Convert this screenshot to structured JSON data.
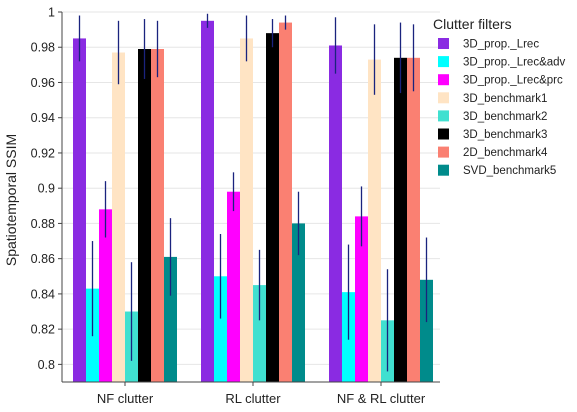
{
  "chart_data": {
    "type": "bar",
    "title": "",
    "xlabel": "",
    "ylabel": "Spatiotemporal SSIM",
    "ylim": [
      0.79,
      1.0
    ],
    "yticks": [
      0.8,
      0.82,
      0.84,
      0.86,
      0.88,
      0.9,
      0.92,
      0.94,
      0.96,
      0.98,
      1
    ],
    "ytick_labels": [
      "0.8",
      "0.82",
      "0.84",
      "0.86",
      "0.88",
      "0.9",
      "0.92",
      "0.94",
      "0.96",
      "0.98",
      "1"
    ],
    "grid": "horizontal",
    "legend_placement": "right",
    "legend_title": "Clutter filters",
    "categories": [
      "NF clutter",
      "RL clutter",
      "NF & RL clutter"
    ],
    "error_bar_color": "#1a237e",
    "series": [
      {
        "name": "3D_prop._Lrec",
        "color": "#8a2be2",
        "values": [
          0.985,
          0.995,
          0.981
        ],
        "errors": [
          0.013,
          0.004,
          0.016
        ]
      },
      {
        "name": "3D_prop._Lrec&adv",
        "color": "#00ffff",
        "values": [
          0.843,
          0.85,
          0.841
        ],
        "errors": [
          0.027,
          0.024,
          0.027
        ]
      },
      {
        "name": "3D_prop._Lrec&prc",
        "color": "#ff00ff",
        "values": [
          0.888,
          0.898,
          0.884
        ],
        "errors": [
          0.016,
          0.011,
          0.017
        ]
      },
      {
        "name": "3D_benchmark1",
        "color": "#ffe4c4",
        "values": [
          0.977,
          0.985,
          0.973
        ],
        "errors": [
          0.018,
          0.013,
          0.02
        ]
      },
      {
        "name": "3D_benchmark2",
        "color": "#40e0d0",
        "values": [
          0.83,
          0.845,
          0.825
        ],
        "errors": [
          0.028,
          0.02,
          0.029
        ]
      },
      {
        "name": "3D_benchmark3",
        "color": "#000000",
        "values": [
          0.979,
          0.988,
          0.974
        ],
        "errors": [
          0.017,
          0.008,
          0.02
        ]
      },
      {
        "name": "2D_benchmark4",
        "color": "#fa8072",
        "values": [
          0.979,
          0.994,
          0.974
        ],
        "errors": [
          0.016,
          0.004,
          0.019
        ]
      },
      {
        "name": "SVD_benchmark5",
        "color": "#008b8b",
        "values": [
          0.861,
          0.88,
          0.848
        ],
        "errors": [
          0.022,
          0.018,
          0.024
        ]
      }
    ]
  }
}
